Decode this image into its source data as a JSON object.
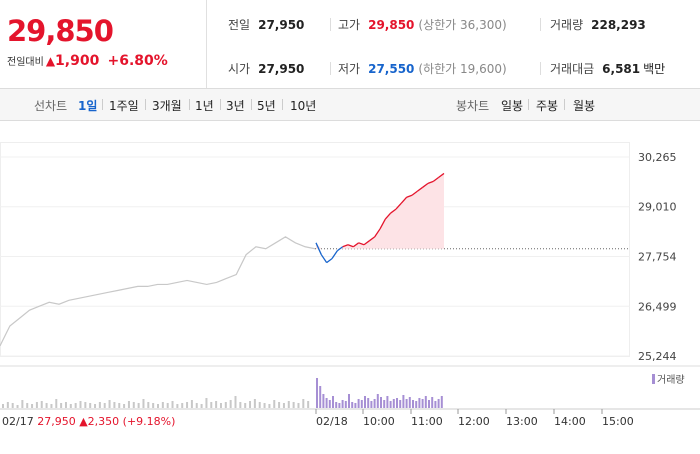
{
  "price": {
    "current": "29,850",
    "change_label": "전일대비",
    "change_arrow": "▲",
    "change_value": "1,900",
    "change_percent": "+6.80%"
  },
  "stats": {
    "prev_close": {
      "label": "전일",
      "value": "27,950"
    },
    "open": {
      "label": "시가",
      "value": "27,950"
    },
    "high": {
      "label": "고가",
      "value": "29,850",
      "sub": "(상한가 36,300)"
    },
    "low": {
      "label": "저가",
      "value": "27,550",
      "sub": "(하한가 19,600)"
    },
    "volume": {
      "label": "거래량",
      "value": "228,293"
    },
    "trade_value": {
      "label": "거래대금",
      "value": "6,581",
      "unit": "백만"
    }
  },
  "toolbar": {
    "line_label": "선차트",
    "line_periods": [
      "1일",
      "1주일",
      "3개월",
      "1년",
      "3년",
      "5년",
      "10년"
    ],
    "active_period": "1일",
    "candle_label": "봉차트",
    "candle_periods": [
      "일봉",
      "주봉",
      "월봉"
    ]
  },
  "chart_data": {
    "type": "line",
    "y_ticks": [
      "30,265",
      "29,010",
      "27,754",
      "26,499",
      "25,244"
    ],
    "ylim": [
      25244,
      30265
    ],
    "x_ticks": [
      "02/18",
      "10:00",
      "11:00",
      "12:00",
      "13:00",
      "14:00",
      "15:00"
    ],
    "reference_price": 27950,
    "prev_day_label": {
      "date": "02/17",
      "close": "27,950",
      "arrow": "▲",
      "change": "2,350",
      "percent": "(+9.18%)"
    },
    "volume_legend": "거래량",
    "colors": {
      "up": "#e4142c",
      "down": "#1764cc",
      "prev": "#c8c8c8",
      "volume_today": "#a68fd4",
      "volume_prev": "#c8c8c8",
      "fill_up": "#fde3e6"
    },
    "series": [
      {
        "values": [
          25500,
          26000,
          26200,
          26400,
          26500,
          26600,
          26550,
          26650,
          26700,
          26750,
          26800,
          26850,
          26900,
          26950,
          27000,
          27000,
          27050,
          27050,
          27100,
          27150,
          27100,
          27050,
          27100,
          27200,
          27300,
          27800,
          28000,
          27950,
          28100,
          28250,
          28100,
          28000,
          27950
        ]
      },
      {
        "values": [
          28100,
          27800,
          27600,
          27700,
          27900,
          28000,
          28050,
          28000,
          28100,
          28050,
          28150,
          28250,
          28450,
          28700,
          28850,
          28950,
          29100,
          29250,
          29300,
          29400,
          29500,
          29600,
          29650,
          29750,
          29850
        ]
      }
    ],
    "volume_prev": [
      4,
      6,
      5,
      3,
      8,
      5,
      4,
      6,
      7,
      5,
      4,
      9,
      5,
      6,
      4,
      5,
      7,
      6,
      5,
      4,
      6,
      5,
      8,
      6,
      5,
      4,
      7,
      6,
      5,
      9,
      6,
      5,
      4,
      6,
      5,
      7,
      4,
      5,
      6,
      8,
      5,
      4,
      10,
      6,
      7,
      5,
      6,
      8,
      12,
      6,
      5,
      7,
      9,
      6,
      5,
      4,
      8,
      6,
      5,
      7,
      6,
      5,
      9,
      7
    ],
    "volume_today": [
      30,
      22,
      14,
      10,
      8,
      12,
      6,
      5,
      8,
      7,
      14,
      6,
      5,
      9,
      8,
      12,
      10,
      7,
      9,
      14,
      11,
      8,
      12,
      7,
      9,
      10,
      8,
      13,
      9,
      11,
      8,
      7,
      10,
      9,
      12,
      8,
      11,
      7,
      9,
      12
    ]
  }
}
